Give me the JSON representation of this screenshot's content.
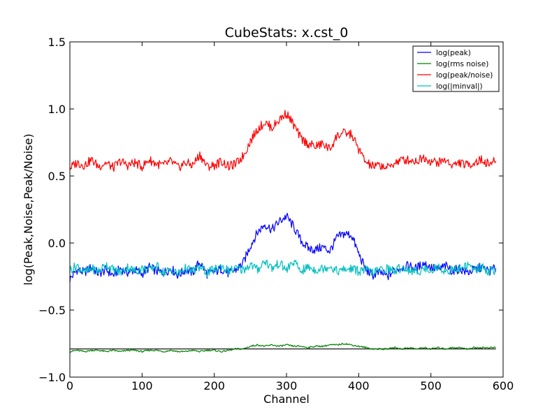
{
  "chart_data": {
    "type": "line",
    "title": "CubeStats: x.cst_0",
    "xlabel": "Channel",
    "ylabel": "log(Peak,Noise,Peak/Noise)",
    "xlim": [
      0,
      600
    ],
    "ylim": [
      -1.0,
      1.5
    ],
    "xticks": [
      0,
      100,
      200,
      300,
      400,
      500,
      600
    ],
    "xtick_labels": [
      "0",
      "100",
      "200",
      "300",
      "400",
      "500",
      "600"
    ],
    "yticks": [
      -1.0,
      -0.5,
      0.0,
      0.5,
      1.0,
      1.5
    ],
    "ytick_labels": [
      "−1.0",
      "−0.5",
      "0.0",
      "0.5",
      "1.0",
      "1.5"
    ],
    "grid": false,
    "legend_position": "top-right",
    "series": [
      {
        "name": "log(peak)",
        "color": "#0000ff",
        "x": [
          0,
          10,
          20,
          30,
          40,
          50,
          60,
          70,
          80,
          90,
          100,
          110,
          120,
          130,
          140,
          150,
          160,
          170,
          180,
          190,
          200,
          210,
          220,
          230,
          240,
          250,
          260,
          270,
          280,
          290,
          300,
          310,
          320,
          330,
          340,
          350,
          360,
          370,
          380,
          390,
          400,
          410,
          420,
          430,
          440,
          450,
          460,
          470,
          480,
          490,
          500,
          510,
          520,
          530,
          540,
          550,
          560,
          570,
          580,
          590
        ],
        "values": [
          -0.27,
          -0.2,
          -0.22,
          -0.18,
          -0.23,
          -0.2,
          -0.24,
          -0.19,
          -0.22,
          -0.2,
          -0.23,
          -0.18,
          -0.21,
          -0.22,
          -0.19,
          -0.24,
          -0.2,
          -0.22,
          -0.14,
          -0.23,
          -0.22,
          -0.19,
          -0.23,
          -0.2,
          -0.15,
          -0.02,
          0.08,
          0.14,
          0.1,
          0.16,
          0.2,
          0.12,
          0.02,
          -0.04,
          -0.05,
          -0.03,
          -0.06,
          0.04,
          0.07,
          0.06,
          -0.08,
          -0.2,
          -0.24,
          -0.22,
          -0.25,
          -0.2,
          -0.18,
          -0.17,
          -0.19,
          -0.15,
          -0.18,
          -0.2,
          -0.17,
          -0.21,
          -0.19,
          -0.22,
          -0.2,
          -0.18,
          -0.21,
          -0.19
        ]
      },
      {
        "name": "log(rms noise)",
        "color": "#008000",
        "x": [
          0,
          10,
          20,
          30,
          40,
          50,
          60,
          70,
          80,
          90,
          100,
          110,
          120,
          130,
          140,
          150,
          160,
          170,
          180,
          190,
          200,
          210,
          220,
          230,
          240,
          250,
          260,
          270,
          280,
          290,
          300,
          310,
          320,
          330,
          340,
          350,
          360,
          370,
          380,
          390,
          400,
          410,
          420,
          430,
          440,
          450,
          460,
          470,
          480,
          490,
          500,
          510,
          520,
          530,
          540,
          550,
          560,
          570,
          580,
          590
        ],
        "values": [
          -0.81,
          -0.8,
          -0.81,
          -0.8,
          -0.8,
          -0.81,
          -0.8,
          -0.81,
          -0.8,
          -0.8,
          -0.81,
          -0.8,
          -0.8,
          -0.81,
          -0.8,
          -0.81,
          -0.81,
          -0.8,
          -0.81,
          -0.8,
          -0.8,
          -0.81,
          -0.8,
          -0.79,
          -0.79,
          -0.77,
          -0.76,
          -0.77,
          -0.76,
          -0.77,
          -0.76,
          -0.77,
          -0.77,
          -0.78,
          -0.77,
          -0.77,
          -0.76,
          -0.76,
          -0.75,
          -0.76,
          -0.77,
          -0.78,
          -0.79,
          -0.79,
          -0.79,
          -0.78,
          -0.79,
          -0.78,
          -0.79,
          -0.78,
          -0.79,
          -0.78,
          -0.79,
          -0.78,
          -0.78,
          -0.79,
          -0.78,
          -0.78,
          -0.78,
          -0.78
        ]
      },
      {
        "name": "log(peak/noise)",
        "color": "#ff0000",
        "x": [
          0,
          10,
          20,
          30,
          40,
          50,
          60,
          70,
          80,
          90,
          100,
          110,
          120,
          130,
          140,
          150,
          160,
          170,
          180,
          190,
          200,
          210,
          220,
          230,
          240,
          250,
          260,
          270,
          280,
          290,
          300,
          310,
          320,
          330,
          340,
          350,
          360,
          370,
          380,
          390,
          400,
          410,
          420,
          430,
          440,
          450,
          460,
          470,
          480,
          490,
          500,
          510,
          520,
          530,
          540,
          550,
          560,
          570,
          580,
          590
        ],
        "values": [
          0.56,
          0.6,
          0.58,
          0.62,
          0.57,
          0.6,
          0.56,
          0.61,
          0.58,
          0.6,
          0.57,
          0.62,
          0.59,
          0.58,
          0.61,
          0.56,
          0.6,
          0.58,
          0.66,
          0.57,
          0.58,
          0.61,
          0.57,
          0.59,
          0.65,
          0.76,
          0.85,
          0.9,
          0.86,
          0.92,
          0.97,
          0.88,
          0.78,
          0.74,
          0.72,
          0.74,
          0.7,
          0.8,
          0.82,
          0.81,
          0.7,
          0.6,
          0.57,
          0.58,
          0.56,
          0.6,
          0.62,
          0.62,
          0.61,
          0.64,
          0.61,
          0.6,
          0.62,
          0.58,
          0.6,
          0.58,
          0.6,
          0.62,
          0.59,
          0.61
        ]
      },
      {
        "name": "log(|minval|)",
        "color": "#00bfbf",
        "x": [
          0,
          10,
          20,
          30,
          40,
          50,
          60,
          70,
          80,
          90,
          100,
          110,
          120,
          130,
          140,
          150,
          160,
          170,
          180,
          190,
          200,
          210,
          220,
          230,
          240,
          250,
          260,
          270,
          280,
          290,
          300,
          310,
          320,
          330,
          340,
          350,
          360,
          370,
          380,
          390,
          400,
          410,
          420,
          430,
          440,
          450,
          460,
          470,
          480,
          490,
          500,
          510,
          520,
          530,
          540,
          550,
          560,
          570,
          580,
          590
        ],
        "values": [
          -0.2,
          -0.17,
          -0.22,
          -0.19,
          -0.21,
          -0.16,
          -0.2,
          -0.22,
          -0.18,
          -0.21,
          -0.19,
          -0.2,
          -0.17,
          -0.22,
          -0.2,
          -0.23,
          -0.19,
          -0.21,
          -0.18,
          -0.22,
          -0.2,
          -0.17,
          -0.21,
          -0.19,
          -0.2,
          -0.16,
          -0.2,
          -0.13,
          -0.19,
          -0.15,
          -0.2,
          -0.14,
          -0.21,
          -0.18,
          -0.2,
          -0.19,
          -0.17,
          -0.21,
          -0.2,
          -0.19,
          -0.21,
          -0.2,
          -0.22,
          -0.2,
          -0.19,
          -0.21,
          -0.18,
          -0.2,
          -0.22,
          -0.19,
          -0.2,
          -0.18,
          -0.21,
          -0.2,
          -0.19,
          -0.17,
          -0.2,
          -0.18,
          -0.21,
          -0.2
        ]
      }
    ],
    "baseline": {
      "color": "#000000",
      "x": [
        0,
        250,
        590
      ],
      "values": [
        -0.79,
        -0.79,
        -0.79
      ]
    }
  }
}
